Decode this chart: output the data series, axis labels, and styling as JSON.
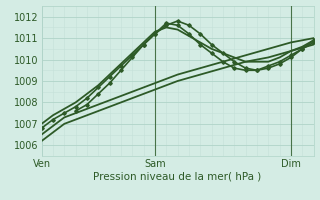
{
  "title": "",
  "xlabel": "Pression niveau de la mer( hPa )",
  "ylabel": "",
  "bg_color": "#d4ece4",
  "grid_color_major": "#b0d4c8",
  "grid_color_minor": "#c4e0d8",
  "line_color": "#2d5a27",
  "ylim": [
    1005.5,
    1012.5
  ],
  "xlim": [
    0,
    48
  ],
  "x_ticks": [
    0,
    20,
    44
  ],
  "x_labels": [
    "Ven",
    "Sam",
    "Dim"
  ],
  "y_ticks": [
    1006,
    1007,
    1008,
    1009,
    1010,
    1011,
    1012
  ],
  "lines": [
    {
      "x": [
        0,
        4,
        8,
        12,
        16,
        20,
        24,
        28,
        32,
        36,
        40,
        44,
        48
      ],
      "y": [
        1006.2,
        1007.0,
        1007.4,
        1007.8,
        1008.2,
        1008.6,
        1009.0,
        1009.3,
        1009.6,
        1009.9,
        1010.1,
        1010.4,
        1010.7
      ],
      "marker": false,
      "lw": 1.3
    },
    {
      "x": [
        0,
        4,
        8,
        12,
        16,
        20,
        24,
        28,
        32,
        36,
        40,
        44,
        48
      ],
      "y": [
        1006.5,
        1007.3,
        1007.7,
        1008.1,
        1008.5,
        1008.9,
        1009.3,
        1009.6,
        1009.9,
        1010.2,
        1010.5,
        1010.8,
        1011.0
      ],
      "marker": false,
      "lw": 1.3
    },
    {
      "x": [
        0,
        2,
        4,
        6,
        8,
        10,
        12,
        14,
        16,
        18,
        20,
        22,
        24,
        26,
        28,
        30,
        32,
        34,
        36,
        38,
        40,
        42,
        44,
        46,
        48
      ],
      "y": [
        1006.8,
        1007.2,
        1007.5,
        1007.8,
        1008.2,
        1008.7,
        1009.2,
        1009.7,
        1010.2,
        1010.7,
        1011.2,
        1011.6,
        1011.8,
        1011.6,
        1011.2,
        1010.7,
        1010.3,
        1009.9,
        1009.6,
        1009.5,
        1009.6,
        1009.8,
        1010.1,
        1010.5,
        1010.8
      ],
      "marker": true,
      "lw": 1.2
    },
    {
      "x": [
        0,
        2,
        4,
        6,
        8,
        10,
        12,
        14,
        16,
        18,
        20,
        22,
        24,
        26,
        28,
        30,
        32,
        34,
        36,
        40,
        42,
        44,
        46,
        48
      ],
      "y": [
        1007.0,
        1007.4,
        1007.7,
        1008.0,
        1008.4,
        1008.8,
        1009.3,
        1009.8,
        1010.3,
        1010.8,
        1011.3,
        1011.5,
        1011.4,
        1011.1,
        1010.8,
        1010.5,
        1010.3,
        1010.1,
        1009.9,
        1009.9,
        1010.1,
        1010.4,
        1010.6,
        1010.9
      ],
      "marker": false,
      "lw": 1.3
    },
    {
      "x": [
        6,
        8,
        10,
        12,
        14,
        16,
        18,
        20,
        22,
        24,
        26,
        28,
        30,
        32,
        34,
        36,
        38,
        40,
        42,
        44,
        46,
        48
      ],
      "y": [
        1007.6,
        1007.9,
        1008.4,
        1008.9,
        1009.5,
        1010.1,
        1010.7,
        1011.2,
        1011.7,
        1011.6,
        1011.2,
        1010.7,
        1010.3,
        1009.9,
        1009.6,
        1009.5,
        1009.5,
        1009.7,
        1009.9,
        1010.2,
        1010.5,
        1010.9
      ],
      "marker": true,
      "lw": 1.2
    }
  ]
}
